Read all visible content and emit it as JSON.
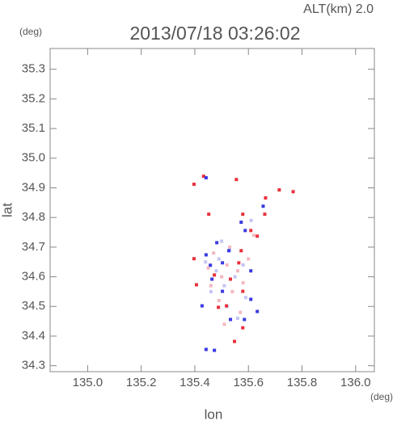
{
  "chart_data": {
    "type": "scatter",
    "title": "2013/07/18 03:26:02",
    "subtitle": "ALT(km) 2.0",
    "x_label": "lon",
    "y_label": "lat",
    "x_unit": "(deg)",
    "y_unit": "(deg)",
    "xlim": [
      134.86,
      136.07
    ],
    "ylim": [
      34.28,
      35.37
    ],
    "xticks": [
      {
        "value": 135.0,
        "label": "135.0"
      },
      135.2,
      135.4,
      135.6,
      135.8,
      {
        "value": 136.0,
        "label": "136.0"
      }
    ],
    "yticks": [
      35.3,
      35.2,
      35.1,
      {
        "value": 35.0,
        "label": "35.0"
      },
      34.9,
      34.8,
      34.7,
      34.6,
      34.5,
      34.4,
      34.3
    ],
    "series": [
      {
        "color": "#f4b8c0",
        "x": [
          135.47,
          135.52,
          135.56,
          135.5,
          135.45,
          135.58,
          135.54,
          135.49,
          135.6,
          135.53,
          135.46,
          135.57,
          135.62,
          135.51
        ],
        "values": [
          34.68,
          34.64,
          34.62,
          34.6,
          34.63,
          34.58,
          34.55,
          34.52,
          34.66,
          34.7,
          34.57,
          34.48,
          34.74,
          34.44
        ]
      },
      {
        "color": "#c4c4f4",
        "x": [
          135.49,
          135.53,
          135.48,
          135.55,
          135.51,
          135.46,
          135.58,
          135.52,
          135.44,
          135.59,
          135.56,
          135.5,
          135.61
        ],
        "values": [
          34.66,
          34.69,
          34.62,
          34.6,
          34.57,
          34.55,
          34.64,
          34.5,
          34.65,
          34.53,
          34.46,
          34.72,
          34.79
        ]
      },
      {
        "color": "#e8303c",
        "x": [
          135.433,
          135.555,
          135.397,
          135.715,
          135.767,
          135.664,
          135.661,
          135.579,
          135.452,
          135.609,
          135.633,
          135.573,
          135.397,
          135.564,
          135.533,
          135.473,
          135.406,
          135.579,
          135.518,
          135.579,
          135.548,
          135.488
        ],
        "values": [
          34.939,
          34.928,
          34.912,
          34.893,
          34.887,
          34.866,
          34.811,
          34.811,
          34.811,
          34.756,
          34.737,
          34.688,
          34.661,
          34.647,
          34.592,
          34.606,
          34.573,
          34.551,
          34.502,
          34.428,
          34.382,
          34.497
        ]
      },
      {
        "color": "#3a3ae0",
        "x": [
          135.442,
          135.655,
          135.573,
          135.482,
          135.442,
          135.503,
          135.464,
          135.609,
          135.503,
          135.427,
          135.609,
          135.533,
          135.633,
          135.585,
          135.442,
          135.473,
          135.588,
          135.527,
          135.458
        ],
        "values": [
          34.934,
          34.838,
          34.784,
          34.715,
          34.674,
          34.647,
          34.592,
          34.62,
          34.551,
          34.502,
          34.524,
          34.456,
          34.483,
          34.456,
          34.355,
          34.352,
          34.756,
          34.688,
          34.639
        ]
      }
    ]
  }
}
